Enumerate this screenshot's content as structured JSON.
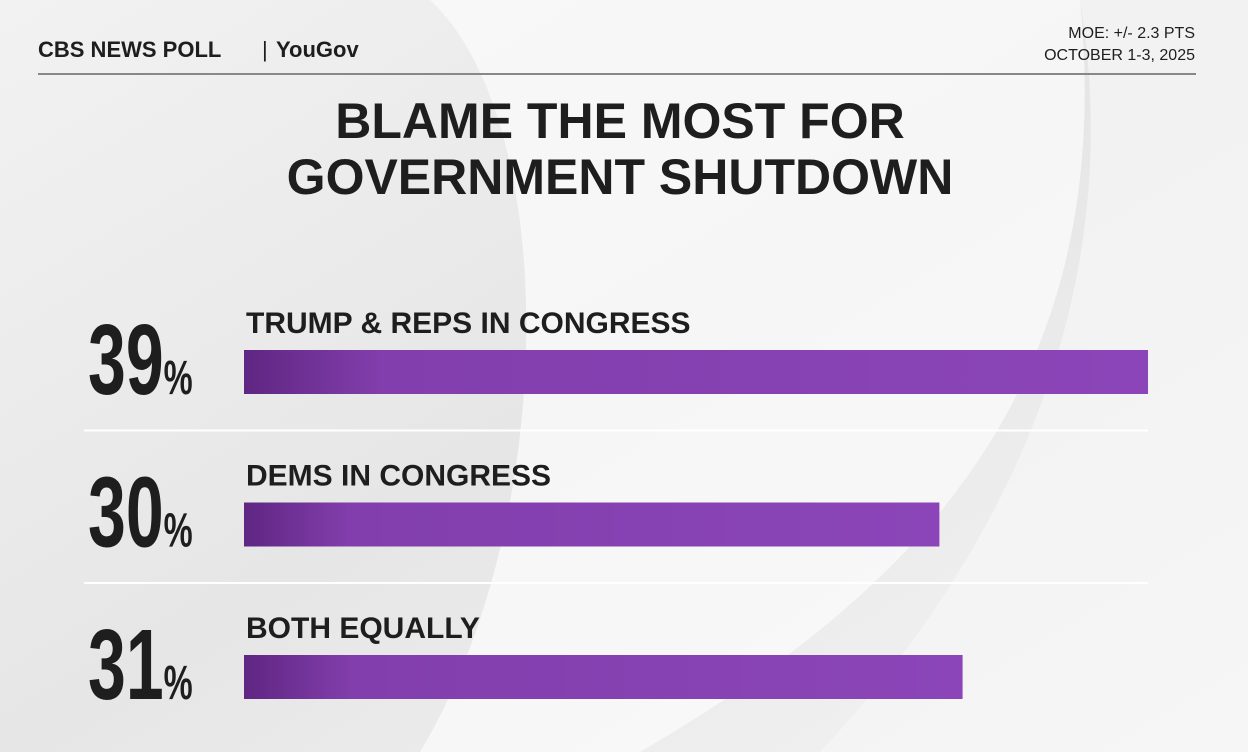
{
  "chart_data": {
    "type": "bar",
    "orientation": "horizontal",
    "source": "CBS NEWS POLL",
    "partner": "YouGov",
    "moe": "MOE: +/- 2.3 PTS",
    "date": "OCTOBER 1-3, 2025",
    "title": [
      "BLAME THE MOST FOR",
      "GOVERNMENT SHUTDOWN"
    ],
    "categories": [
      "TRUMP & REPS IN CONGRESS",
      "DEMS IN CONGRESS",
      "BOTH EQUALLY"
    ],
    "values": [
      39,
      30,
      31
    ],
    "value_labels": [
      "39%",
      "30%",
      "31%"
    ],
    "color": "#8b45b8"
  }
}
